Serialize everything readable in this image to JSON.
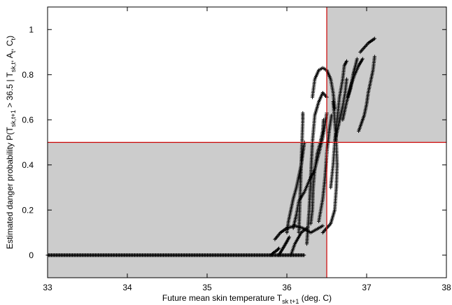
{
  "chart_data": {
    "type": "scatter",
    "title": "",
    "xlabel": {
      "prefix": "Future mean skin temperature T",
      "subscript": "sk t+1",
      "suffix": " (deg. C)"
    },
    "ylabel": {
      "parts": [
        {
          "t": "Estimated danger probability P(T",
          "sub": false
        },
        {
          "t": "sk,t+1",
          "sub": true
        },
        {
          "t": " > 36.5 | T",
          "sub": false
        },
        {
          "t": "sk,t",
          "sub": true
        },
        {
          "t": ", A",
          "sub": false
        },
        {
          "t": "t",
          "sub": true
        },
        {
          "t": ", C",
          "sub": false
        },
        {
          "t": "t",
          "sub": true
        },
        {
          "t": ")",
          "sub": false
        }
      ]
    },
    "xlim": [
      33,
      38
    ],
    "ylim": [
      -0.1,
      1.1
    ],
    "xticks": [
      33,
      34,
      35,
      36,
      37,
      38
    ],
    "yticks": [
      0,
      0.2,
      0.4,
      0.6,
      0.8,
      1
    ],
    "xtick_labels": [
      "33",
      "34",
      "35",
      "36",
      "37",
      "38"
    ],
    "ytick_labels": [
      "0",
      "0.2",
      "0.4",
      "0.6",
      "0.8",
      "1"
    ],
    "threshold_x": 36.5,
    "threshold_y": 0.5,
    "shaded_regions": [
      {
        "x": [
          33,
          36.5
        ],
        "y": [
          -0.1,
          0.5
        ]
      },
      {
        "x": [
          36.5,
          38
        ],
        "y": [
          0.5,
          1.1
        ]
      }
    ],
    "marker": "+",
    "colors": {
      "shade": "#cccccc",
      "threshold": "#cc0000",
      "points": "#000000"
    },
    "baseline": {
      "x_range": [
        33.0,
        36.22
      ],
      "y": 0
    },
    "traces": [
      [
        [
          35.8,
          0.0
        ],
        [
          35.83,
          0.01
        ],
        [
          35.87,
          0.02
        ],
        [
          35.9,
          0.03
        ]
      ],
      [
        [
          35.9,
          0.0
        ],
        [
          35.95,
          0.03
        ],
        [
          36.0,
          0.06
        ],
        [
          36.03,
          0.08
        ]
      ],
      [
        [
          36.05,
          0.0
        ],
        [
          36.1,
          0.05
        ],
        [
          36.18,
          0.1
        ],
        [
          36.25,
          0.12
        ]
      ],
      [
        [
          35.85,
          0.07
        ],
        [
          35.92,
          0.1
        ],
        [
          36.0,
          0.12
        ],
        [
          36.1,
          0.13
        ],
        [
          36.2,
          0.12
        ],
        [
          36.3,
          0.1
        ],
        [
          36.4,
          0.12
        ],
        [
          36.45,
          0.13
        ]
      ],
      [
        [
          36.0,
          0.1
        ],
        [
          36.02,
          0.15
        ],
        [
          36.05,
          0.2
        ],
        [
          36.08,
          0.25
        ],
        [
          36.12,
          0.3
        ],
        [
          36.15,
          0.35
        ],
        [
          36.18,
          0.4
        ],
        [
          36.2,
          0.45
        ],
        [
          36.22,
          0.5
        ]
      ],
      [
        [
          36.15,
          0.1
        ],
        [
          36.16,
          0.2
        ],
        [
          36.17,
          0.3
        ],
        [
          36.18,
          0.4
        ],
        [
          36.19,
          0.5
        ],
        [
          36.2,
          0.6
        ],
        [
          36.2,
          0.63
        ]
      ],
      [
        [
          36.08,
          0.12
        ],
        [
          36.12,
          0.18
        ],
        [
          36.15,
          0.24
        ],
        [
          36.22,
          0.28
        ],
        [
          36.28,
          0.33
        ],
        [
          36.35,
          0.38
        ],
        [
          36.4,
          0.45
        ],
        [
          36.45,
          0.52
        ],
        [
          36.48,
          0.58
        ],
        [
          36.5,
          0.63
        ]
      ],
      [
        [
          36.3,
          0.14
        ],
        [
          36.32,
          0.2
        ],
        [
          36.33,
          0.3
        ],
        [
          36.35,
          0.38
        ],
        [
          36.38,
          0.45
        ],
        [
          36.42,
          0.5
        ],
        [
          36.45,
          0.55
        ],
        [
          36.46,
          0.6
        ]
      ],
      [
        [
          36.25,
          0.05
        ],
        [
          36.28,
          0.2
        ],
        [
          36.3,
          0.35
        ],
        [
          36.32,
          0.5
        ],
        [
          36.35,
          0.62
        ],
        [
          36.4,
          0.68
        ],
        [
          36.45,
          0.72
        ],
        [
          36.5,
          0.7
        ]
      ],
      [
        [
          36.32,
          0.7
        ],
        [
          36.35,
          0.78
        ],
        [
          36.4,
          0.82
        ],
        [
          36.45,
          0.83
        ],
        [
          36.5,
          0.82
        ],
        [
          36.55,
          0.78
        ],
        [
          36.58,
          0.72
        ],
        [
          36.6,
          0.65
        ]
      ],
      [
        [
          36.45,
          0.1
        ],
        [
          36.5,
          0.12
        ],
        [
          36.55,
          0.14
        ],
        [
          36.6,
          0.2
        ],
        [
          36.62,
          0.3
        ],
        [
          36.63,
          0.4
        ],
        [
          36.62,
          0.5
        ],
        [
          36.6,
          0.6
        ],
        [
          36.58,
          0.68
        ]
      ],
      [
        [
          36.4,
          0.15
        ],
        [
          36.45,
          0.25
        ],
        [
          36.48,
          0.35
        ],
        [
          36.5,
          0.45
        ],
        [
          36.53,
          0.55
        ],
        [
          36.56,
          0.62
        ]
      ],
      [
        [
          36.55,
          0.3
        ],
        [
          36.58,
          0.4
        ],
        [
          36.6,
          0.5
        ],
        [
          36.63,
          0.6
        ],
        [
          36.66,
          0.7
        ],
        [
          36.7,
          0.78
        ],
        [
          36.72,
          0.84
        ],
        [
          36.75,
          0.86
        ]
      ],
      [
        [
          36.6,
          0.5
        ],
        [
          36.65,
          0.58
        ],
        [
          36.7,
          0.66
        ],
        [
          36.73,
          0.72
        ],
        [
          36.75,
          0.78
        ]
      ],
      [
        [
          36.7,
          0.6
        ],
        [
          36.75,
          0.68
        ],
        [
          36.8,
          0.74
        ],
        [
          36.83,
          0.8
        ],
        [
          36.86,
          0.84
        ],
        [
          36.88,
          0.87
        ]
      ],
      [
        [
          36.76,
          0.7
        ],
        [
          36.8,
          0.75
        ],
        [
          36.85,
          0.8
        ],
        [
          36.9,
          0.84
        ],
        [
          36.95,
          0.87
        ]
      ],
      [
        [
          36.92,
          0.9
        ],
        [
          36.97,
          0.92
        ],
        [
          37.02,
          0.94
        ],
        [
          37.06,
          0.95
        ],
        [
          37.1,
          0.96
        ]
      ],
      [
        [
          36.9,
          0.55
        ],
        [
          36.93,
          0.58
        ],
        [
          36.97,
          0.62
        ],
        [
          37.0,
          0.67
        ],
        [
          37.02,
          0.72
        ],
        [
          37.05,
          0.77
        ],
        [
          37.08,
          0.82
        ],
        [
          37.1,
          0.88
        ]
      ]
    ]
  }
}
